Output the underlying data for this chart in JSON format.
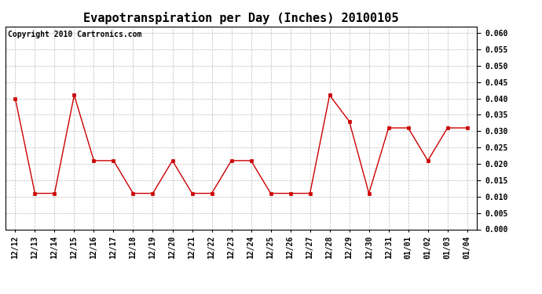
{
  "title": "Evapotranspiration per Day (Inches) 20100105",
  "copyright_text": "Copyright 2010 Cartronics.com",
  "x_labels": [
    "12/12",
    "12/13",
    "12/14",
    "12/15",
    "12/16",
    "12/17",
    "12/18",
    "12/19",
    "12/20",
    "12/21",
    "12/22",
    "12/23",
    "12/24",
    "12/25",
    "12/26",
    "12/27",
    "12/28",
    "12/29",
    "12/30",
    "12/31",
    "01/01",
    "01/02",
    "01/03",
    "01/04"
  ],
  "y_values": [
    0.04,
    0.011,
    0.011,
    0.041,
    0.021,
    0.021,
    0.011,
    0.011,
    0.021,
    0.011,
    0.011,
    0.021,
    0.021,
    0.011,
    0.011,
    0.011,
    0.041,
    0.033,
    0.011,
    0.031,
    0.031,
    0.021,
    0.031,
    0.031
  ],
  "line_color": "#cc0000",
  "marker_color": "#cc0000",
  "background_color": "#ffffff",
  "grid_color": "#bbbbbb",
  "ylim": [
    0.0,
    0.062
  ],
  "ytick_step": 0.005,
  "title_fontsize": 11,
  "copyright_fontsize": 7,
  "tick_fontsize": 7
}
